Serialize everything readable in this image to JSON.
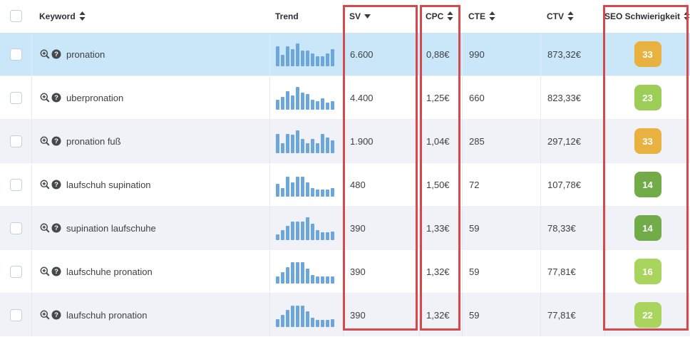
{
  "table": {
    "header": {
      "columns": [
        {
          "key": "keyword",
          "label": "Keyword",
          "sort": "both"
        },
        {
          "key": "trend",
          "label": "Trend",
          "sort": "none"
        },
        {
          "key": "sv",
          "label": "SV",
          "sort": "desc"
        },
        {
          "key": "cpc",
          "label": "CPC",
          "sort": "both"
        },
        {
          "key": "cte",
          "label": "CTE",
          "sort": "both"
        },
        {
          "key": "ctv",
          "label": "CTV",
          "sort": "both"
        },
        {
          "key": "seo",
          "label": "SEO Schwierigkeit",
          "sort": "both"
        }
      ]
    },
    "rows": [
      {
        "keyword": "pronation",
        "highlighted": true,
        "trend": [
          88,
          50,
          88,
          75,
          100,
          69,
          69,
          56,
          44,
          44,
          56,
          75
        ],
        "sv": "6.600",
        "cpc": "0,88€",
        "cte": "990",
        "ctv": "873,32€",
        "seo": "33",
        "seo_color": "#e8b140"
      },
      {
        "keyword": "uberpronation",
        "highlighted": false,
        "trend": [
          44,
          56,
          81,
          63,
          100,
          75,
          69,
          44,
          38,
          50,
          31,
          38
        ],
        "sv": "4.400",
        "cpc": "1,25€",
        "cte": "660",
        "ctv": "823,33€",
        "seo": "23",
        "seo_color": "#9ccd57"
      },
      {
        "keyword": "pronation fuß",
        "highlighted": false,
        "trend": [
          85,
          45,
          85,
          80,
          100,
          62,
          45,
          62,
          45,
          85,
          68,
          55
        ],
        "sv": "1.900",
        "cpc": "1,04€",
        "cte": "285",
        "ctv": "297,12€",
        "seo": "33",
        "seo_color": "#e8b140"
      },
      {
        "keyword": "laufschuh supination",
        "highlighted": false,
        "trend": [
          56,
          38,
          88,
          62,
          88,
          88,
          62,
          38,
          30,
          30,
          30,
          38
        ],
        "sv": "480",
        "cpc": "1,50€",
        "cte": "72",
        "ctv": "107,78€",
        "seo": "14",
        "seo_color": "#72ac49"
      },
      {
        "keyword": "supination laufschuhe",
        "highlighted": false,
        "trend": [
          25,
          44,
          62,
          81,
          81,
          81,
          100,
          72,
          44,
          34,
          34,
          38
        ],
        "sv": "390",
        "cpc": "1,33€",
        "cte": "59",
        "ctv": "78,33€",
        "seo": "14",
        "seo_color": "#72ac49"
      },
      {
        "keyword": "laufschuhe pronation",
        "highlighted": false,
        "trend": [
          31,
          50,
          72,
          94,
          94,
          94,
          66,
          38,
          31,
          31,
          31,
          31
        ],
        "sv": "390",
        "cpc": "1,32€",
        "cte": "59",
        "ctv": "77,81€",
        "seo": "16",
        "seo_color": "#a9d55f"
      },
      {
        "keyword": "laufschuh pronation",
        "highlighted": false,
        "trend": [
          34,
          53,
          75,
          94,
          94,
          94,
          69,
          41,
          31,
          31,
          31,
          34
        ],
        "sv": "390",
        "cpc": "1,32€",
        "cte": "59",
        "ctv": "77,81€",
        "seo": "22",
        "seo_color": "#a9d55f"
      }
    ]
  },
  "annotations": {
    "highlight_box_color": "#d4494b",
    "highlighted_columns": [
      "SV",
      "CPC",
      "SEO Schwierigkeit"
    ]
  },
  "colors": {
    "selected_row": "#c9e7f8",
    "zebra_row": "#f1f2f7",
    "trend_bar": "#6da6da",
    "badge_amber": "#e8b140",
    "badge_green": "#72ac49",
    "badge_light_green": "#a9d55f"
  }
}
